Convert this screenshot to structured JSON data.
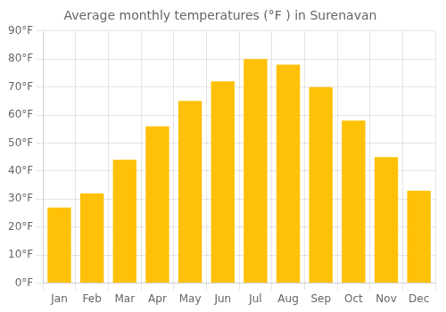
{
  "chart_data": {
    "type": "bar",
    "title": "Average monthly temperatures (°F ) in Surenavan",
    "categories": [
      "Jan",
      "Feb",
      "Mar",
      "Apr",
      "May",
      "Jun",
      "Jul",
      "Aug",
      "Sep",
      "Oct",
      "Nov",
      "Dec"
    ],
    "values": [
      27,
      32,
      44,
      56,
      65,
      72,
      80,
      78,
      70,
      58,
      45,
      33
    ],
    "color": "#FFC107",
    "ylim": [
      0,
      90
    ],
    "yticks": [
      {
        "value": 0,
        "label": "0°F"
      },
      {
        "value": 10,
        "label": "10°F"
      },
      {
        "value": 20,
        "label": "20°F"
      },
      {
        "value": 30,
        "label": "30°F"
      },
      {
        "value": 40,
        "label": "40°F"
      },
      {
        "value": 50,
        "label": "50°F"
      },
      {
        "value": 60,
        "label": "60°F"
      },
      {
        "value": 70,
        "label": "70°F"
      },
      {
        "value": 80,
        "label": "80°F"
      },
      {
        "value": 90,
        "label": "90°F"
      }
    ],
    "grid": true
  }
}
